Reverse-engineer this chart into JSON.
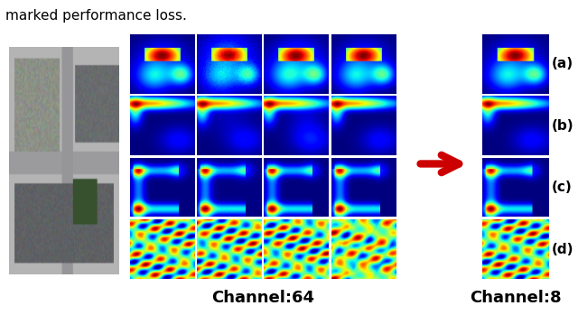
{
  "title_text": "marked performance loss.",
  "channel64_label": "Channel:64",
  "channel8_label": "Channel:8",
  "row_labels": [
    "(a)",
    "(b)",
    "(c)",
    "(d)"
  ],
  "arrow_color": "#cc0000",
  "background_color": "#ffffff",
  "title_fontsize": 11,
  "channel_label_fontsize": 13,
  "row_label_fontsize": 11
}
